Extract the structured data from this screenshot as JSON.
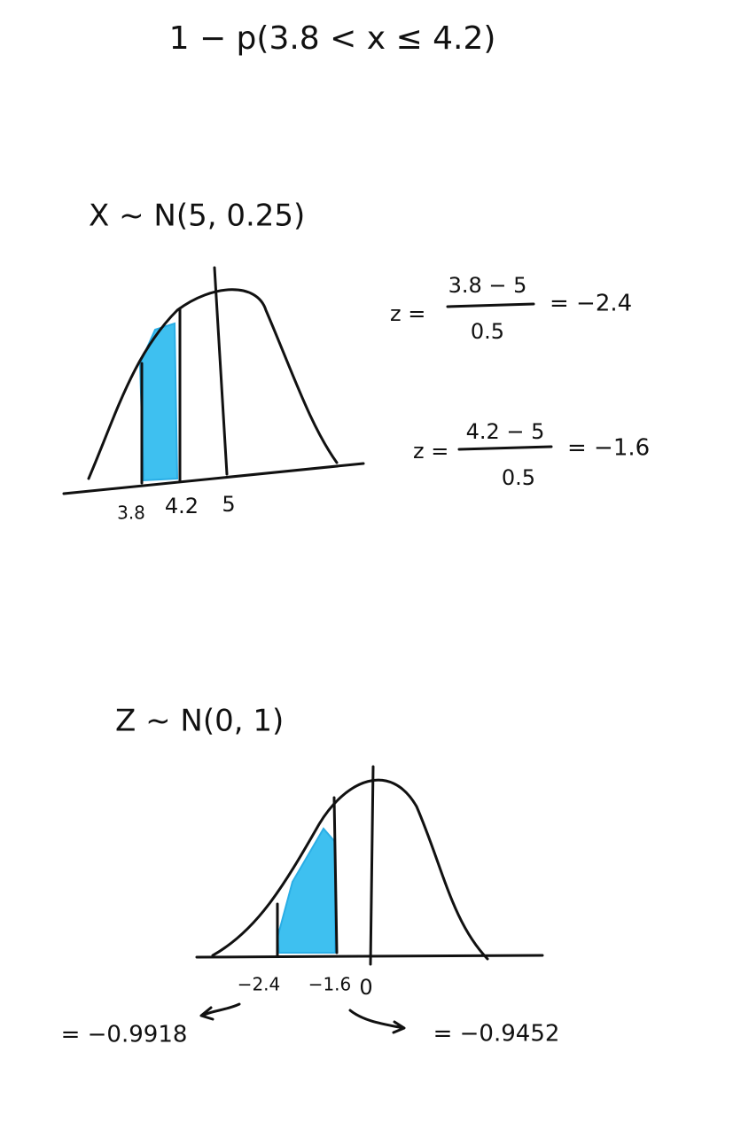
{
  "title": "1 − p(3.8 < x ≤ 4.2)",
  "sections": [
    {
      "distribution": "X ~ N(5, 0.25)",
      "axis_labels": [
        "3.8",
        "4.2",
        "5"
      ],
      "z_calcs": [
        {
          "lhs": "z =",
          "numerator": "3.8 − 5",
          "denominator": "0.5",
          "result": "= −2.4"
        },
        {
          "lhs": "z =",
          "numerator": "4.2 − 5",
          "denominator": "0.5",
          "result": "= −1.6"
        }
      ]
    },
    {
      "distribution": "Z ~ N(0, 1)",
      "axis_labels": [
        "−2.4",
        "−1.6",
        "0"
      ],
      "results": [
        "= −0.9918",
        "= −0.9452"
      ]
    }
  ]
}
